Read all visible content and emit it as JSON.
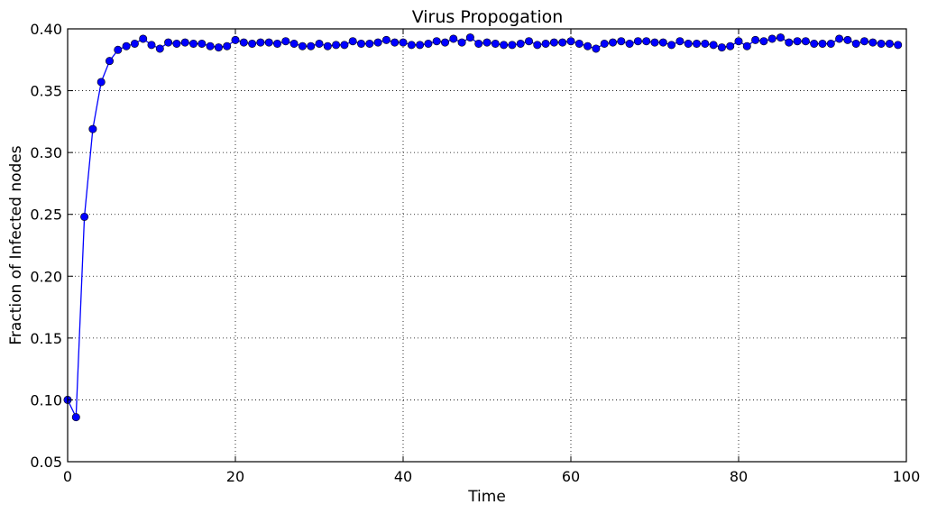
{
  "chart_data": {
    "type": "line",
    "title": "Virus Propogation",
    "xlabel": "Time",
    "ylabel": "Fraction of Infected nodes",
    "xlim": [
      0,
      100
    ],
    "ylim": [
      0.05,
      0.4
    ],
    "xticks": [
      0,
      20,
      40,
      60,
      80,
      100
    ],
    "yticks": [
      0.05,
      0.1,
      0.15,
      0.2,
      0.25,
      0.3,
      0.35,
      0.4
    ],
    "xtick_labels": [
      "0",
      "20",
      "40",
      "60",
      "80",
      "100"
    ],
    "ytick_labels": [
      "0.05",
      "0.10",
      "0.15",
      "0.20",
      "0.25",
      "0.30",
      "0.35",
      "0.40"
    ],
    "grid": true,
    "line_color": "#0000ff",
    "marker": "circle",
    "series": [
      {
        "x": [
          0,
          1,
          2,
          3,
          4,
          5,
          6,
          7,
          8,
          9,
          10,
          11,
          12,
          13,
          14,
          15,
          16,
          17,
          18,
          19,
          20,
          21,
          22,
          23,
          24,
          25,
          26,
          27,
          28,
          29,
          30,
          31,
          32,
          33,
          34,
          35,
          36,
          37,
          38,
          39,
          40,
          41,
          42,
          43,
          44,
          45,
          46,
          47,
          48,
          49,
          50,
          51,
          52,
          53,
          54,
          55,
          56,
          57,
          58,
          59,
          60,
          61,
          62,
          63,
          64,
          65,
          66,
          67,
          68,
          69,
          70,
          71,
          72,
          73,
          74,
          75,
          76,
          77,
          78,
          79,
          80,
          81,
          82,
          83,
          84,
          85,
          86,
          87,
          88,
          89,
          90,
          91,
          92,
          93,
          94,
          95,
          96,
          97,
          98,
          99
        ],
        "values": [
          0.1,
          0.086,
          0.248,
          0.319,
          0.357,
          0.374,
          0.383,
          0.386,
          0.388,
          0.392,
          0.387,
          0.384,
          0.389,
          0.388,
          0.389,
          0.388,
          0.388,
          0.386,
          0.385,
          0.386,
          0.391,
          0.389,
          0.388,
          0.389,
          0.389,
          0.388,
          0.39,
          0.388,
          0.386,
          0.386,
          0.388,
          0.386,
          0.387,
          0.387,
          0.39,
          0.388,
          0.388,
          0.389,
          0.391,
          0.389,
          0.389,
          0.387,
          0.387,
          0.388,
          0.39,
          0.389,
          0.392,
          0.389,
          0.393,
          0.388,
          0.389,
          0.388,
          0.387,
          0.387,
          0.388,
          0.39,
          0.387,
          0.388,
          0.389,
          0.389,
          0.39,
          0.388,
          0.386,
          0.384,
          0.388,
          0.389,
          0.39,
          0.388,
          0.39,
          0.39,
          0.389,
          0.389,
          0.387,
          0.39,
          0.388,
          0.388,
          0.388,
          0.387,
          0.385,
          0.386,
          0.39,
          0.386,
          0.391,
          0.39,
          0.392,
          0.393,
          0.389,
          0.39,
          0.39,
          0.388,
          0.388,
          0.388,
          0.392,
          0.391,
          0.388,
          0.39,
          0.389,
          0.388,
          0.388,
          0.387
        ]
      }
    ]
  }
}
